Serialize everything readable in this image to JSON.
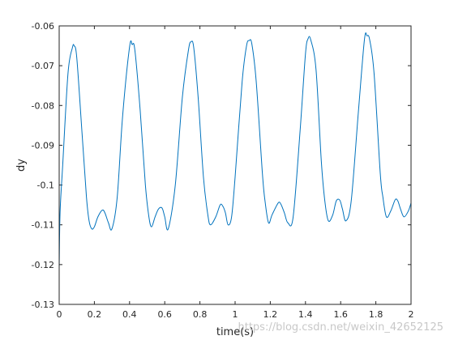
{
  "chart_data": {
    "type": "line",
    "title": "",
    "xlabel": "time(s)",
    "ylabel": "dy",
    "xlim": [
      0,
      2
    ],
    "ylim": [
      -0.13,
      -0.06
    ],
    "xticks": [
      0,
      0.2,
      0.4,
      0.6,
      0.8,
      1,
      1.2,
      1.4,
      1.6,
      1.8,
      2
    ],
    "xtick_labels": [
      "0",
      "0.2",
      "0.4",
      "0.6",
      "0.8",
      "1",
      "1.2",
      "1.4",
      "1.6",
      "1.8",
      "2"
    ],
    "yticks": [
      -0.13,
      -0.12,
      -0.11,
      -0.1,
      -0.09,
      -0.08,
      -0.07,
      -0.06
    ],
    "ytick_labels": [
      "-0.13",
      "-0.12",
      "-0.11",
      "-0.1",
      "-0.09",
      "-0.08",
      "-0.07",
      "-0.06"
    ],
    "grid": false,
    "legend": "none",
    "line_color": "#0072BD",
    "series": [
      {
        "name": "",
        "x": [
          0,
          0.005,
          0.02,
          0.05,
          0.075,
          0.085,
          0.1,
          0.13,
          0.155,
          0.17,
          0.185,
          0.2,
          0.22,
          0.245,
          0.26,
          0.28,
          0.3,
          0.33,
          0.36,
          0.4,
          0.415,
          0.43,
          0.46,
          0.49,
          0.51,
          0.525,
          0.545,
          0.565,
          0.585,
          0.6,
          0.62,
          0.66,
          0.7,
          0.735,
          0.75,
          0.765,
          0.79,
          0.82,
          0.845,
          0.86,
          0.89,
          0.915,
          0.93,
          0.945,
          0.96,
          0.98,
          1.0,
          1.04,
          1.065,
          1.08,
          1.095,
          1.12,
          1.155,
          1.17,
          1.19,
          1.21,
          1.245,
          1.26,
          1.28,
          1.3,
          1.33,
          1.37,
          1.4,
          1.415,
          1.43,
          1.46,
          1.49,
          1.51,
          1.53,
          1.555,
          1.575,
          1.595,
          1.61,
          1.63,
          1.66,
          1.7,
          1.735,
          1.75,
          1.765,
          1.79,
          1.825,
          1.84,
          1.86,
          1.885,
          1.91,
          1.925,
          1.94,
          1.96,
          1.985,
          2.0
        ],
        "y": [
          -0.121,
          -0.107,
          -0.095,
          -0.072,
          -0.0655,
          -0.065,
          -0.068,
          -0.087,
          -0.103,
          -0.109,
          -0.111,
          -0.1105,
          -0.108,
          -0.1063,
          -0.107,
          -0.1095,
          -0.111,
          -0.103,
          -0.083,
          -0.0653,
          -0.0647,
          -0.066,
          -0.081,
          -0.1,
          -0.108,
          -0.1105,
          -0.108,
          -0.106,
          -0.1058,
          -0.108,
          -0.111,
          -0.1,
          -0.078,
          -0.066,
          -0.064,
          -0.0655,
          -0.078,
          -0.098,
          -0.1075,
          -0.11,
          -0.108,
          -0.105,
          -0.1053,
          -0.107,
          -0.11,
          -0.108,
          -0.098,
          -0.074,
          -0.065,
          -0.0637,
          -0.0645,
          -0.074,
          -0.097,
          -0.104,
          -0.1095,
          -0.1075,
          -0.1045,
          -0.1048,
          -0.107,
          -0.1095,
          -0.108,
          -0.086,
          -0.067,
          -0.0632,
          -0.0635,
          -0.071,
          -0.094,
          -0.104,
          -0.109,
          -0.1075,
          -0.104,
          -0.1038,
          -0.106,
          -0.109,
          -0.104,
          -0.082,
          -0.0635,
          -0.0625,
          -0.0635,
          -0.072,
          -0.097,
          -0.103,
          -0.108,
          -0.1065,
          -0.1037,
          -0.104,
          -0.106,
          -0.108,
          -0.1065,
          -0.1045
        ]
      }
    ]
  },
  "watermark_text": "https://blog.csdn.net/weixin_42652125"
}
